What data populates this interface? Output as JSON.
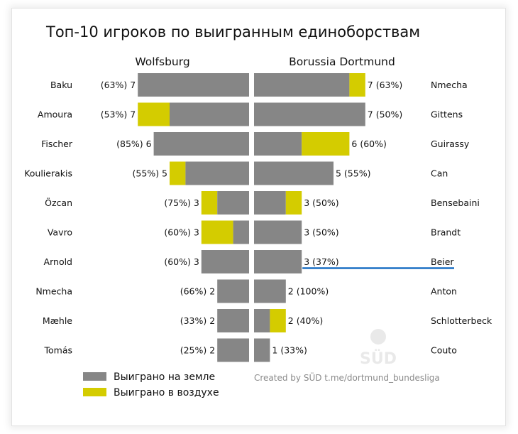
{
  "chart_data": {
    "type": "bar",
    "title": "Топ-10 игроков по выигранным единоборствам",
    "credit": "Created by SÜD t.me/dortmund_bundesliga",
    "watermark": "SÜD",
    "colors": {
      "ground": "#868686",
      "air": "#d4cc00",
      "highlight_underline": "#1a6fc4"
    },
    "legend": {
      "placement": "bottom-left",
      "items": [
        {
          "key": "ground",
          "label": "Выиграно на земле"
        },
        {
          "key": "air",
          "label": "Выиграно в воздухе"
        }
      ]
    },
    "teams": [
      {
        "name": "Wolfsburg",
        "side": "left",
        "players": [
          {
            "name": "Baku",
            "total": 7,
            "ground": 7,
            "air": 0,
            "pct": "63%"
          },
          {
            "name": "Amoura",
            "total": 7,
            "ground": 5,
            "air": 2,
            "pct": "53%"
          },
          {
            "name": "Fischer",
            "total": 6,
            "ground": 6,
            "air": 0,
            "pct": "85%"
          },
          {
            "name": "Koulierakis",
            "total": 5,
            "ground": 4,
            "air": 1,
            "pct": "55%"
          },
          {
            "name": "Özcan",
            "total": 3,
            "ground": 2,
            "air": 1,
            "pct": "75%"
          },
          {
            "name": "Vavro",
            "total": 3,
            "ground": 1,
            "air": 2,
            "pct": "60%"
          },
          {
            "name": "Arnold",
            "total": 3,
            "ground": 3,
            "air": 0,
            "pct": "60%"
          },
          {
            "name": "Nmecha",
            "total": 2,
            "ground": 2,
            "air": 0,
            "pct": "66%"
          },
          {
            "name": "Mæhle",
            "total": 2,
            "ground": 2,
            "air": 0,
            "pct": "33%"
          },
          {
            "name": "Tomás",
            "total": 2,
            "ground": 2,
            "air": 0,
            "pct": "25%"
          }
        ]
      },
      {
        "name": "Borussia Dortmund",
        "side": "right",
        "players": [
          {
            "name": "Nmecha",
            "total": 7,
            "ground": 6,
            "air": 1,
            "pct": "63%"
          },
          {
            "name": "Gittens",
            "total": 7,
            "ground": 7,
            "air": 0,
            "pct": "50%"
          },
          {
            "name": "Guirassy",
            "total": 6,
            "ground": 3,
            "air": 3,
            "pct": "60%"
          },
          {
            "name": "Can",
            "total": 5,
            "ground": 5,
            "air": 0,
            "pct": "55%"
          },
          {
            "name": "Bensebaini",
            "total": 3,
            "ground": 2,
            "air": 1,
            "pct": "50%"
          },
          {
            "name": "Brandt",
            "total": 3,
            "ground": 3,
            "air": 0,
            "pct": "50%"
          },
          {
            "name": "Beier",
            "total": 3,
            "ground": 3,
            "air": 0,
            "pct": "37%",
            "highlighted": true
          },
          {
            "name": "Anton",
            "total": 2,
            "ground": 2,
            "air": 0,
            "pct": "100%"
          },
          {
            "name": "Schlotterbeck",
            "total": 2,
            "ground": 1,
            "air": 1,
            "pct": "40%"
          },
          {
            "name": "Couto",
            "total": 1,
            "ground": 1,
            "air": 0,
            "pct": "33%"
          }
        ]
      }
    ]
  }
}
